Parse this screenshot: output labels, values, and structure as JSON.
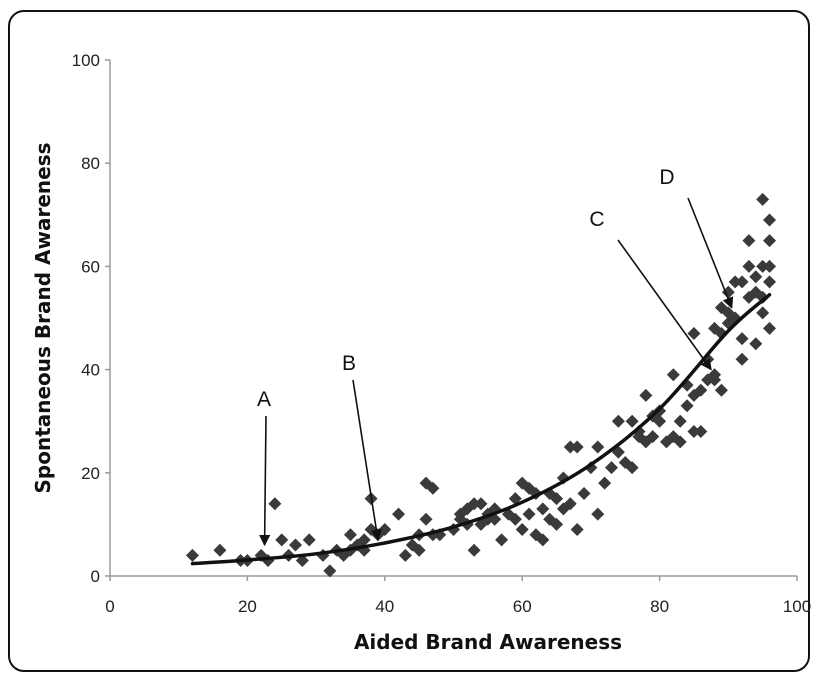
{
  "chart_data": {
    "type": "scatter",
    "title": "",
    "xlabel": "Aided Brand Awareness",
    "ylabel": "Spontaneous Brand Awareness",
    "xlim": [
      0,
      100
    ],
    "ylim": [
      0,
      100
    ],
    "x_ticks": [
      "0",
      "20",
      "40",
      "60",
      "80",
      "100"
    ],
    "y_ticks": [
      "0",
      "20",
      "40",
      "60",
      "80",
      "100"
    ],
    "grid": false,
    "legend": "none",
    "marker_color": "#3a3a3a",
    "points": [
      [
        12,
        4
      ],
      [
        16,
        5
      ],
      [
        19,
        3
      ],
      [
        20,
        3
      ],
      [
        22,
        4
      ],
      [
        23,
        3
      ],
      [
        24,
        14
      ],
      [
        25,
        7
      ],
      [
        26,
        4
      ],
      [
        27,
        6
      ],
      [
        28,
        3
      ],
      [
        29,
        7
      ],
      [
        31,
        4
      ],
      [
        32,
        1
      ],
      [
        33,
        5
      ],
      [
        34,
        4
      ],
      [
        35,
        5
      ],
      [
        35,
        8
      ],
      [
        36,
        6
      ],
      [
        37,
        5
      ],
      [
        37,
        7
      ],
      [
        38,
        15
      ],
      [
        38,
        9
      ],
      [
        39,
        8
      ],
      [
        40,
        9
      ],
      [
        42,
        12
      ],
      [
        43,
        4
      ],
      [
        44,
        6
      ],
      [
        45,
        8
      ],
      [
        45,
        5
      ],
      [
        46,
        11
      ],
      [
        46,
        18
      ],
      [
        47,
        17
      ],
      [
        47,
        8
      ],
      [
        48,
        8
      ],
      [
        50,
        9
      ],
      [
        51,
        11
      ],
      [
        51,
        12
      ],
      [
        52,
        13
      ],
      [
        52,
        10
      ],
      [
        53,
        14
      ],
      [
        53,
        5
      ],
      [
        54,
        10
      ],
      [
        54,
        14
      ],
      [
        55,
        11
      ],
      [
        55,
        12
      ],
      [
        56,
        13
      ],
      [
        56,
        11
      ],
      [
        57,
        7
      ],
      [
        58,
        12
      ],
      [
        59,
        15
      ],
      [
        59,
        11
      ],
      [
        60,
        9
      ],
      [
        60,
        18
      ],
      [
        61,
        12
      ],
      [
        61,
        17
      ],
      [
        62,
        16
      ],
      [
        62,
        8
      ],
      [
        63,
        13
      ],
      [
        63,
        7
      ],
      [
        64,
        11
      ],
      [
        64,
        16
      ],
      [
        65,
        10
      ],
      [
        65,
        15
      ],
      [
        66,
        19
      ],
      [
        66,
        13
      ],
      [
        67,
        25
      ],
      [
        67,
        14
      ],
      [
        68,
        25
      ],
      [
        68,
        9
      ],
      [
        69,
        16
      ],
      [
        70,
        21
      ],
      [
        71,
        12
      ],
      [
        71,
        25
      ],
      [
        72,
        18
      ],
      [
        73,
        21
      ],
      [
        74,
        30
      ],
      [
        74,
        24
      ],
      [
        75,
        22
      ],
      [
        76,
        21
      ],
      [
        76,
        30
      ],
      [
        77,
        28
      ],
      [
        77,
        27
      ],
      [
        78,
        35
      ],
      [
        78,
        26
      ],
      [
        79,
        31
      ],
      [
        79,
        27
      ],
      [
        80,
        32
      ],
      [
        80,
        30
      ],
      [
        81,
        26
      ],
      [
        82,
        39
      ],
      [
        82,
        27
      ],
      [
        83,
        30
      ],
      [
        83,
        26
      ],
      [
        84,
        33
      ],
      [
        84,
        37
      ],
      [
        85,
        35
      ],
      [
        85,
        28
      ],
      [
        85,
        47
      ],
      [
        86,
        36
      ],
      [
        86,
        28
      ],
      [
        87,
        38
      ],
      [
        87,
        42
      ],
      [
        88,
        38
      ],
      [
        88,
        48
      ],
      [
        88,
        39
      ],
      [
        89,
        47
      ],
      [
        89,
        52
      ],
      [
        89,
        36
      ],
      [
        90,
        49
      ],
      [
        90,
        55
      ],
      [
        90,
        51
      ],
      [
        91,
        57
      ],
      [
        91,
        50
      ],
      [
        92,
        57
      ],
      [
        92,
        46
      ],
      [
        92,
        42
      ],
      [
        93,
        54
      ],
      [
        93,
        65
      ],
      [
        93,
        60
      ],
      [
        94,
        45
      ],
      [
        94,
        55
      ],
      [
        94,
        58
      ],
      [
        95,
        73
      ],
      [
        95,
        60
      ],
      [
        95,
        54
      ],
      [
        95,
        51
      ],
      [
        96,
        69
      ],
      [
        96,
        65
      ],
      [
        96,
        60
      ],
      [
        96,
        57
      ],
      [
        96,
        48
      ]
    ],
    "trend_line": {
      "type": "exponential",
      "points": [
        [
          12,
          2.4
        ],
        [
          20,
          3.1
        ],
        [
          30,
          4.3
        ],
        [
          40,
          6.4
        ],
        [
          50,
          9.5
        ],
        [
          60,
          14.3
        ],
        [
          70,
          21.6
        ],
        [
          80,
          32.4
        ],
        [
          90,
          47.5
        ],
        [
          96,
          54.5
        ]
      ]
    },
    "annotations": [
      {
        "label": "A",
        "x": 22.5,
        "y": 6
      },
      {
        "label": "B",
        "x": 39,
        "y": 7
      },
      {
        "label": "C",
        "x": 87.5,
        "y": 40
      },
      {
        "label": "D",
        "x": 90.5,
        "y": 52
      }
    ]
  }
}
